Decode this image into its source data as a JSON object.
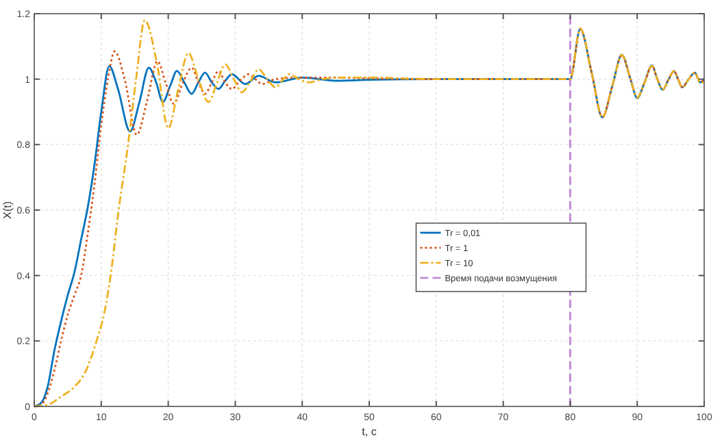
{
  "chart_data": {
    "type": "line",
    "xlabel": "t, c",
    "ylabel": "X(t)",
    "xlim": [
      0,
      100
    ],
    "ylim": [
      0,
      1.2
    ],
    "xticks": [
      0,
      10,
      20,
      30,
      40,
      50,
      60,
      70,
      80,
      90,
      100
    ],
    "yticks": [
      0,
      0.2,
      0.4,
      0.6,
      0.8,
      1,
      1.2
    ],
    "grid": true,
    "legend": "right",
    "series": [
      {
        "name": "Tr = 0,01",
        "color": "#0072bd",
        "line_style": "solid",
        "x": [
          0,
          1,
          2,
          3,
          4,
          5,
          6,
          7,
          8,
          9,
          10,
          11.2,
          12.5,
          14.3,
          15.7,
          17.1,
          18.2,
          19.2,
          20.3,
          21.3,
          22.4,
          23.5,
          24.5,
          25.5,
          26.5,
          27.5,
          28.5,
          29.5,
          31.5,
          33.5,
          36,
          40,
          45,
          50,
          60,
          70,
          79.9,
          80,
          81.5,
          83.2,
          84.8,
          86.3,
          87.7,
          89,
          90,
          91.1,
          92.2,
          93,
          93.8,
          94.7,
          95.5,
          96.1,
          96.7,
          97.7,
          98.6,
          99.4,
          100
        ],
        "values": [
          0,
          0.01,
          0.06,
          0.17,
          0.26,
          0.34,
          0.41,
          0.51,
          0.61,
          0.74,
          0.9,
          1.04,
          0.97,
          0.84,
          0.93,
          1.035,
          0.99,
          0.93,
          0.98,
          1.025,
          0.99,
          0.955,
          0.99,
          1.02,
          0.99,
          0.97,
          0.995,
          1.015,
          0.985,
          1.01,
          0.99,
          1.005,
          0.995,
          0.998,
          1,
          1,
          1,
          1,
          1.154,
          1.02,
          0.883,
          0.98,
          1.075,
          1,
          0.942,
          0.99,
          1.042,
          1,
          0.967,
          1,
          1.025,
          1,
          0.975,
          1,
          1.02,
          0.99,
          1
        ]
      },
      {
        "name": "Tr = 1",
        "color": "#d95319",
        "line_style": "dotted",
        "x": [
          0,
          1,
          2,
          3,
          4,
          5,
          6,
          7,
          8,
          9,
          10,
          11,
          12,
          13.5,
          15.3,
          16.8,
          18.4,
          19.6,
          20.8,
          22.2,
          23.5,
          24.5,
          25.5,
          26.5,
          27.5,
          28.5,
          29.5,
          30.7,
          32,
          33,
          34,
          36,
          40,
          45,
          50,
          60,
          70,
          79.9,
          80,
          81.5,
          83.2,
          84.8,
          86.3,
          87.7,
          89,
          90,
          91.1,
          92.2,
          93,
          93.8,
          94.7,
          95.5,
          96.1,
          96.7,
          97.7,
          98.6,
          99.4,
          100
        ],
        "values": [
          0,
          0.005,
          0.04,
          0.11,
          0.2,
          0.28,
          0.34,
          0.4,
          0.53,
          0.68,
          0.86,
          1,
          1.085,
          1,
          0.83,
          0.93,
          1.055,
          0.99,
          0.925,
          0.99,
          1.035,
          0.99,
          0.955,
          0.99,
          1.025,
          0.99,
          0.97,
          0.995,
          1.015,
          1,
          0.985,
          1,
          1.005,
          1.005,
          1.002,
          1,
          1,
          1,
          1,
          1.152,
          1.02,
          0.885,
          0.98,
          1.073,
          1,
          0.944,
          0.99,
          1.04,
          1,
          0.968,
          1,
          1.024,
          1,
          0.976,
          1,
          1.019,
          0.99,
          1
        ]
      },
      {
        "name": "Tr = 10",
        "color": "#edb120",
        "line_style": "dashed",
        "x": [
          0,
          2,
          4,
          6,
          7.5,
          9.3,
          10.5,
          11.4,
          12.6,
          14,
          15.2,
          16.5,
          18.3,
          20,
          21.5,
          23,
          24.5,
          26,
          27.3,
          28.5,
          29.8,
          31,
          32.3,
          33.5,
          34.8,
          36,
          37,
          38,
          39.5,
          41,
          43,
          46,
          50,
          60,
          70,
          79.9,
          80,
          81.5,
          83.2,
          84.8,
          86.3,
          87.7,
          89,
          90,
          91.1,
          92.2,
          93,
          93.8,
          94.7,
          95.5,
          96.1,
          96.7,
          97.7,
          98.6,
          99.4,
          100
        ],
        "values": [
          0,
          0.005,
          0.03,
          0.06,
          0.1,
          0.2,
          0.29,
          0.4,
          0.6,
          0.8,
          1,
          1.18,
          1.05,
          0.85,
          0.97,
          1.08,
          1,
          0.93,
          0.99,
          1.045,
          1,
          0.96,
          0.995,
          1.03,
          1,
          0.975,
          0.995,
          1.015,
          1,
          0.99,
          1,
          1.005,
          1.005,
          1,
          1,
          1,
          1,
          1.155,
          1.02,
          0.884,
          0.98,
          1.074,
          1,
          0.943,
          0.99,
          1.041,
          1,
          0.968,
          1,
          1.025,
          1,
          0.975,
          1,
          1.02,
          0.99,
          0.99
        ]
      }
    ],
    "ref_lines": [
      {
        "axis": "x",
        "value": 80,
        "label": "Время подачи возмущения",
        "color": "#c58ad8",
        "line_style": "dashed"
      }
    ]
  }
}
